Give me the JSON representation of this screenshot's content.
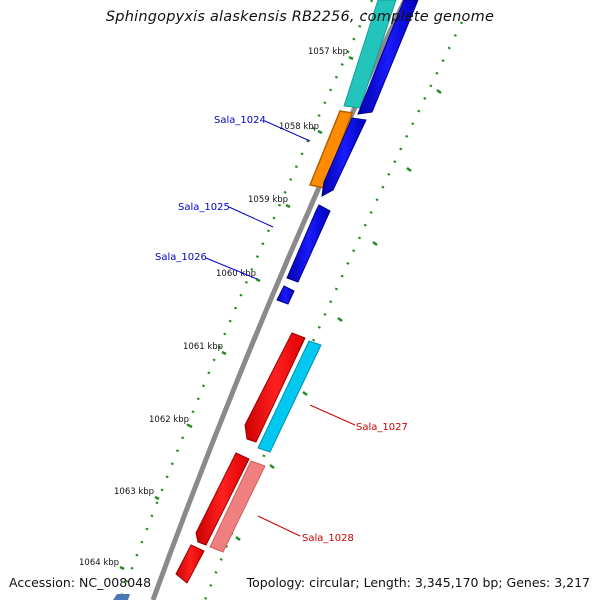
{
  "title": "Sphingopyxis alaskensis RB2256, complete genome",
  "accession": "Accession: NC_008048",
  "summary": "Topology: circular; Length: 3,345,170 bp; Genes: 3,217",
  "ruler_labels": [
    "1057 kbp",
    "1058 kbp",
    "1059 kbp",
    "1060 kbp",
    "1061 kbp",
    "1062 kbp",
    "1063 kbp",
    "1064 kbp"
  ],
  "genes": [
    {
      "name": "Sala_1024",
      "color": "#0000cc"
    },
    {
      "name": "Sala_1025",
      "color": "#0000cc"
    },
    {
      "name": "Sala_1026",
      "color": "#0000cc"
    },
    {
      "name": "Sala_1027",
      "color": "#cc0000"
    },
    {
      "name": "Sala_1028",
      "color": "#cc0000"
    }
  ],
  "colors": {
    "forward_blue": "#0000ee",
    "cyan": "#00c8f0",
    "teal": "#20c8c0",
    "orange": "#ff8c00",
    "red": "#ff0000",
    "pink": "#f08080",
    "backbone": "#888888",
    "tick_green": "#228b22"
  }
}
